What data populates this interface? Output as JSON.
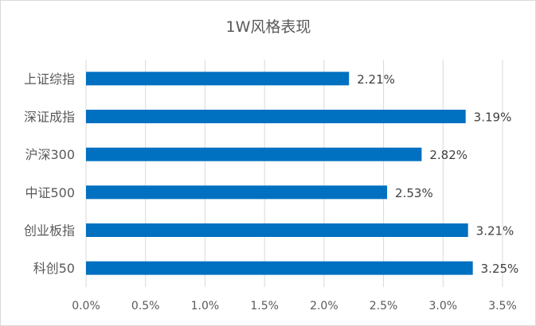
{
  "chart_data": {
    "type": "bar",
    "orientation": "horizontal",
    "title": "1W风格表现",
    "categories": [
      "上证综指",
      "深证成指",
      "沪深300",
      "中证500",
      "创业板指",
      "科创50"
    ],
    "values": [
      2.21,
      3.19,
      2.82,
      2.53,
      3.21,
      3.25
    ],
    "value_labels": [
      "2.21%",
      "3.19%",
      "2.82%",
      "2.53%",
      "3.21%",
      "3.25%"
    ],
    "x_ticks": [
      0,
      0.5,
      1,
      1.5,
      2,
      2.5,
      3,
      3.5
    ],
    "x_tick_labels": [
      "0.0%",
      "0.5%",
      "1.0%",
      "1.5%",
      "2.0%",
      "2.5%",
      "3.0%",
      "3.5%"
    ],
    "xlim": [
      0,
      3.5
    ],
    "xlabel": "",
    "ylabel": "",
    "grid": "vertical",
    "legend": "none",
    "bar_color": "#0070C0"
  }
}
